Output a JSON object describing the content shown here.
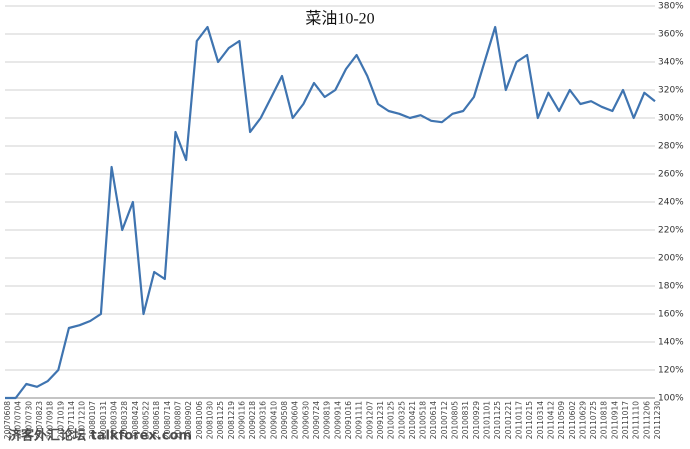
{
  "chart_data": {
    "type": "line",
    "title": "菜油10-20",
    "categories": [
      "20070608",
      "20070704",
      "20070730",
      "20070823",
      "20070918",
      "20071019",
      "20071114",
      "20071210",
      "20080107",
      "20080131",
      "20080304",
      "20080328",
      "20080424",
      "20080522",
      "20080618",
      "20080714",
      "20080807",
      "20080902",
      "20081006",
      "20081030",
      "20081125",
      "20081219",
      "20090116",
      "20090218",
      "20090316",
      "20090410",
      "20090508",
      "20090604",
      "20090630",
      "20090724",
      "20090819",
      "20090914",
      "20091016",
      "20091111",
      "20091207",
      "20091231",
      "20100125",
      "20100325",
      "20100421",
      "20100518",
      "20100614",
      "20100712",
      "20100805",
      "20100831",
      "20100929",
      "20101101",
      "20101125",
      "20101221",
      "20110117",
      "20110215",
      "20110314",
      "20110412",
      "20110509",
      "20110602",
      "20110629",
      "20110725",
      "20110818",
      "20110914",
      "20111017",
      "20111110",
      "20111206",
      "20111230"
    ],
    "values": [
      100,
      100,
      110,
      108,
      112,
      120,
      150,
      152,
      155,
      160,
      265,
      220,
      240,
      160,
      190,
      185,
      290,
      270,
      355,
      365,
      340,
      350,
      355,
      290,
      300,
      315,
      330,
      300,
      310,
      325,
      315,
      320,
      335,
      345,
      330,
      310,
      305,
      303,
      300,
      302,
      298,
      297,
      303,
      305,
      315,
      340,
      365,
      320,
      340,
      345,
      300,
      318,
      305,
      320,
      310,
      312,
      308,
      305,
      320,
      300,
      318,
      312
    ],
    "color": "#3f74b0",
    "ylim": [
      100,
      380
    ],
    "yticks": [
      {
        "value": 100,
        "label": "100%"
      },
      {
        "value": 120,
        "label": "120%"
      },
      {
        "value": 140,
        "label": "140%"
      },
      {
        "value": 160,
        "label": "160%"
      },
      {
        "value": 180,
        "label": "180%"
      },
      {
        "value": 200,
        "label": "200%"
      },
      {
        "value": 220,
        "label": "220%"
      },
      {
        "value": 240,
        "label": "240%"
      },
      {
        "value": 260,
        "label": "260%"
      },
      {
        "value": 280,
        "label": "280%"
      },
      {
        "value": 300,
        "label": "300%"
      },
      {
        "value": 320,
        "label": "320%"
      },
      {
        "value": 340,
        "label": "340%"
      },
      {
        "value": 360,
        "label": "360%"
      },
      {
        "value": 380,
        "label": "380%"
      }
    ],
    "grid": true,
    "watermark": "济客外汇论坛 talkforex.com"
  }
}
